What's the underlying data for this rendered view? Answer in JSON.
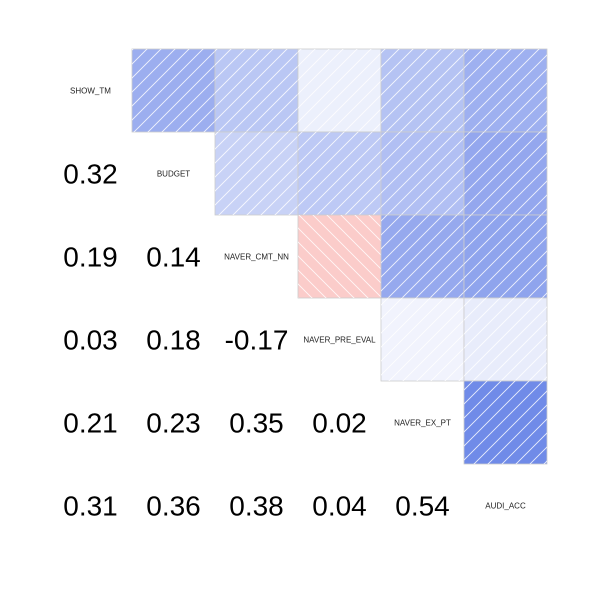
{
  "chart_data": {
    "type": "heatmap",
    "variables": [
      "SHOW_TM",
      "BUDGET",
      "NAVER_CMT_NN",
      "NAVER_PRE_EVAL",
      "NAVER_EX_PT",
      "AUDI_ACC"
    ],
    "matrix": [
      [
        1.0,
        0.32,
        0.19,
        0.03,
        0.21,
        0.31
      ],
      [
        0.32,
        1.0,
        0.14,
        0.18,
        0.23,
        0.36
      ],
      [
        0.19,
        0.14,
        1.0,
        -0.17,
        0.35,
        0.38
      ],
      [
        0.03,
        0.18,
        -0.17,
        1.0,
        0.02,
        0.04
      ],
      [
        0.21,
        0.23,
        0.35,
        0.02,
        1.0,
        0.54
      ],
      [
        0.31,
        0.36,
        0.38,
        0.04,
        0.54,
        1.0
      ]
    ],
    "lower_labels": [
      [
        "0.32"
      ],
      [
        "0.19",
        "0.14"
      ],
      [
        "0.03",
        "0.18",
        "-0.17"
      ],
      [
        "0.21",
        "0.23",
        "0.35",
        "0.02"
      ],
      [
        "0.31",
        "0.36",
        "0.38",
        "0.04",
        "0.54"
      ]
    ],
    "upper": "shaded squares with diagonal hatching",
    "lower": "correlation coefficients as numbers",
    "diagonal": "variable names",
    "value_range": [
      -1,
      1
    ],
    "colors": {
      "positive": "#3b5fe0",
      "negative": "#f2635a",
      "neutral": "#ffffff",
      "hatch_stroke": "#ffffff",
      "cell_border": "#cccccc"
    }
  }
}
